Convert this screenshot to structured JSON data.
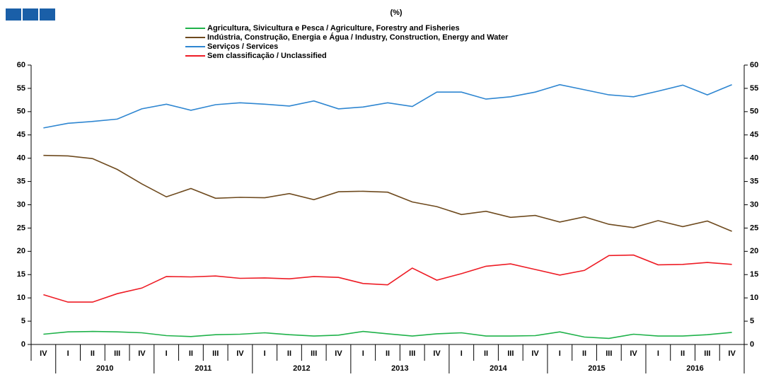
{
  "chart_data": {
    "type": "line",
    "title": "(%)",
    "categories": [
      "IV",
      "I",
      "II",
      "III",
      "IV",
      "I",
      "II",
      "III",
      "IV",
      "I",
      "II",
      "III",
      "IV",
      "I",
      "II",
      "III",
      "IV",
      "I",
      "II",
      "III",
      "IV",
      "I",
      "II",
      "III",
      "IV",
      "I",
      "II",
      "III",
      "IV"
    ],
    "years": [
      "2010",
      "2011",
      "2012",
      "2013",
      "2014",
      "2015",
      "2016"
    ],
    "series": [
      {
        "name": "Agricultura, Sivicultura e Pesca / Agriculture, Forestry and Fisheries",
        "color": "#1fb24a",
        "values": [
          2.2,
          2.7,
          2.8,
          2.7,
          2.5,
          1.9,
          1.7,
          2.1,
          2.2,
          2.5,
          2.1,
          1.8,
          2.0,
          2.8,
          2.3,
          1.8,
          2.3,
          2.5,
          1.8,
          1.8,
          1.9,
          2.7,
          1.6,
          1.3,
          2.2,
          1.8,
          1.8,
          2.1,
          2.6
        ]
      },
      {
        "name": "Indústria, Construção, Energia e Água / Industry, Construction, Energy and Water",
        "color": "#6e4a1e",
        "values": [
          40.6,
          40.5,
          39.9,
          37.6,
          34.5,
          31.7,
          33.5,
          31.4,
          31.6,
          31.5,
          32.4,
          31.1,
          32.8,
          32.9,
          32.7,
          30.6,
          29.6,
          27.9,
          28.6,
          27.3,
          27.7,
          26.3,
          27.4,
          25.8,
          25.1,
          26.6,
          25.3,
          26.5,
          24.3
        ]
      },
      {
        "name": "Serviços / Services",
        "color": "#2e86d1",
        "values": [
          46.5,
          47.5,
          47.9,
          48.4,
          50.6,
          51.6,
          50.3,
          51.5,
          51.9,
          51.6,
          51.2,
          52.3,
          50.6,
          51.0,
          51.9,
          51.1,
          54.2,
          54.2,
          52.7,
          53.2,
          54.2,
          55.8,
          54.7,
          53.6,
          53.2,
          54.4,
          55.7,
          53.6,
          55.8
        ]
      },
      {
        "name": "Sem classificação / Unclassified",
        "color": "#ee1c25",
        "values": [
          10.7,
          9.1,
          9.1,
          10.9,
          12.1,
          14.6,
          14.5,
          14.7,
          14.2,
          14.3,
          14.1,
          14.6,
          14.4,
          13.1,
          12.8,
          16.4,
          13.8,
          15.2,
          16.8,
          17.3,
          16.1,
          14.9,
          15.9,
          19.1,
          19.2,
          17.1,
          17.2,
          17.6,
          17.2
        ]
      }
    ],
    "ylim": [
      0,
      60
    ],
    "yticks": [
      0,
      5,
      10,
      15,
      20,
      25,
      30,
      35,
      40,
      45,
      50,
      55,
      60
    ],
    "y2lim": [
      0,
      60
    ],
    "y2ticks": [
      0,
      5,
      10,
      15,
      20,
      25,
      30,
      35,
      40,
      45,
      50,
      55,
      60
    ]
  }
}
